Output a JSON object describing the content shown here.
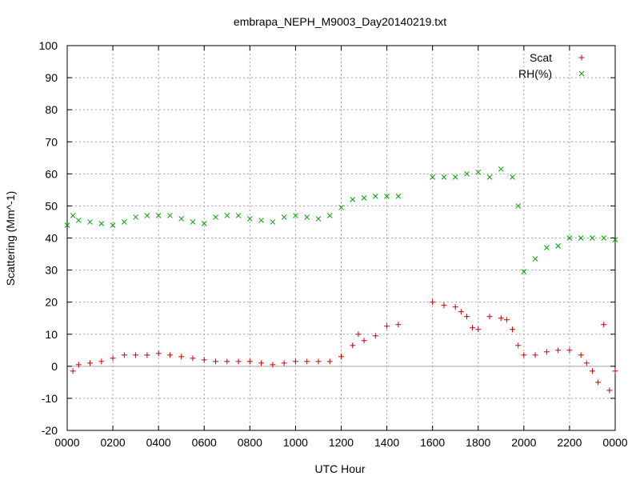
{
  "chart_data": {
    "type": "scatter",
    "title": "embrapa_NEPH_M9003_Day20140219.txt",
    "xlabel": "UTC Hour",
    "ylabel": "Scattering (Mm^-1)",
    "xlim": [
      0,
      24
    ],
    "ylim": [
      -20,
      100
    ],
    "x_tick_values": [
      0,
      2,
      4,
      6,
      8,
      10,
      12,
      14,
      16,
      18,
      20,
      22,
      24
    ],
    "x_tick_labels": [
      "0000",
      "0200",
      "0400",
      "0600",
      "0800",
      "1000",
      "1200",
      "1400",
      "1600",
      "1800",
      "2000",
      "2200",
      "0000"
    ],
    "y_ticks": [
      -20,
      -10,
      0,
      10,
      20,
      30,
      40,
      50,
      60,
      70,
      80,
      90,
      100
    ],
    "grid": true,
    "legend_position": "top-right",
    "series": [
      {
        "name": "Scat",
        "marker": "+",
        "color": "#cc0000",
        "x": [
          0.25,
          0.5,
          1.0,
          1.5,
          2.0,
          2.5,
          3.0,
          3.5,
          4.0,
          4.5,
          5.0,
          5.5,
          6.0,
          6.5,
          7.0,
          7.5,
          8.0,
          8.5,
          9.0,
          9.5,
          10.0,
          10.5,
          11.0,
          11.5,
          12.0,
          12.5,
          12.75,
          13.0,
          13.5,
          14.0,
          14.5,
          16.0,
          16.5,
          17.0,
          17.25,
          17.5,
          17.75,
          18.0,
          18.5,
          19.0,
          19.25,
          19.5,
          19.75,
          20.0,
          20.5,
          21.0,
          21.5,
          22.0,
          22.5,
          22.75,
          23.0,
          23.25,
          23.5,
          23.75,
          24.0
        ],
        "y": [
          -1.5,
          0.5,
          1.0,
          1.5,
          2.5,
          3.5,
          3.5,
          3.5,
          4.0,
          3.5,
          3.0,
          2.5,
          2.0,
          1.5,
          1.5,
          1.5,
          1.5,
          1.0,
          0.5,
          1.0,
          1.5,
          1.5,
          1.5,
          1.5,
          3.0,
          6.5,
          10.0,
          8.0,
          9.5,
          12.5,
          13.0,
          20.0,
          19.0,
          18.5,
          17.0,
          15.5,
          12.0,
          11.5,
          15.5,
          15.0,
          14.5,
          11.5,
          6.5,
          3.5,
          3.5,
          4.5,
          5.0,
          5.0,
          3.5,
          1.0,
          -1.5,
          -5.0,
          13.0,
          -7.5,
          -1.5
        ]
      },
      {
        "name": "RH(%)",
        "marker": "x",
        "color": "#00a000",
        "x": [
          0.0,
          0.25,
          0.5,
          1.0,
          1.5,
          2.0,
          2.5,
          3.0,
          3.5,
          4.0,
          4.5,
          5.0,
          5.5,
          6.0,
          6.5,
          7.0,
          7.5,
          8.0,
          8.5,
          9.0,
          9.5,
          10.0,
          10.5,
          11.0,
          11.5,
          12.0,
          12.5,
          13.0,
          13.5,
          14.0,
          14.5,
          16.0,
          16.5,
          17.0,
          17.5,
          18.0,
          18.5,
          19.0,
          19.5,
          19.75,
          20.0,
          20.5,
          21.0,
          21.5,
          22.0,
          22.5,
          23.0,
          23.5,
          24.0
        ],
        "y": [
          44.0,
          47.0,
          45.5,
          45.0,
          44.5,
          44.0,
          45.0,
          46.5,
          47.0,
          47.0,
          47.0,
          46.0,
          45.0,
          44.5,
          46.5,
          47.0,
          47.0,
          46.0,
          45.5,
          45.0,
          46.5,
          47.0,
          46.5,
          46.0,
          47.0,
          49.5,
          52.0,
          52.5,
          53.0,
          53.0,
          53.0,
          59.0,
          59.0,
          59.0,
          60.0,
          60.5,
          59.0,
          61.5,
          59.0,
          50.0,
          29.5,
          33.5,
          37.0,
          37.5,
          40.0,
          40.0,
          40.0,
          40.0,
          39.5
        ]
      }
    ]
  }
}
